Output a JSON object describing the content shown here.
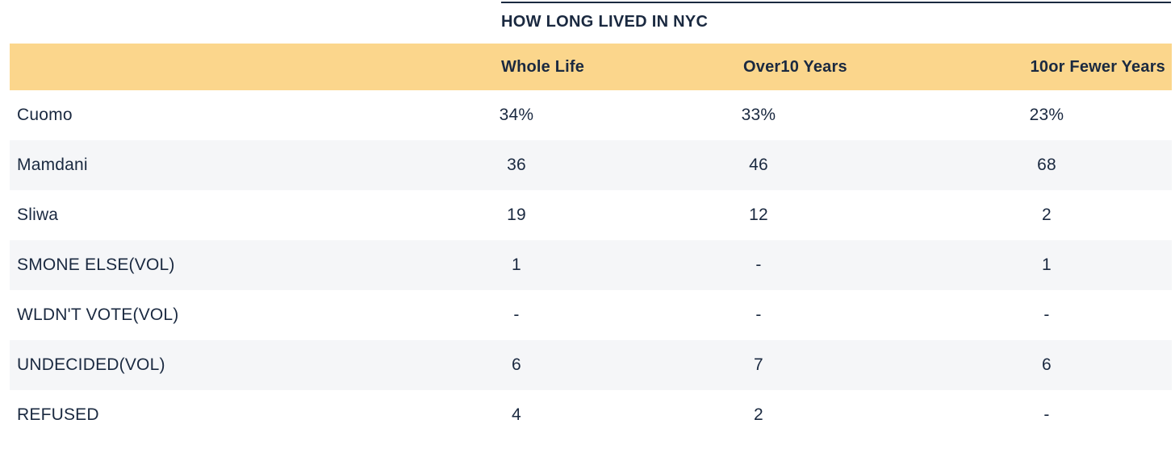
{
  "colors": {
    "text_navy": "#1a2940",
    "header_band_yellow": "#fbd68c",
    "row_stripe_gray": "#f5f6f8",
    "page_background": "#ffffff"
  },
  "chart_data": {
    "type": "table",
    "title": "HOW LONG LIVED IN NYC",
    "columns": [
      "Whole Life",
      "Over10 Years",
      "10or Fewer Years"
    ],
    "rows": [
      {
        "label": "Cuomo",
        "values": [
          "34%",
          "33%",
          "23%"
        ]
      },
      {
        "label": "Mamdani",
        "values": [
          "36",
          "46",
          "68"
        ]
      },
      {
        "label": "Sliwa",
        "values": [
          "19",
          "12",
          "2"
        ]
      },
      {
        "label": "SMONE ELSE(VOL)",
        "values": [
          "1",
          "-",
          "1"
        ]
      },
      {
        "label": "WLDN'T VOTE(VOL)",
        "values": [
          "-",
          "-",
          "-"
        ]
      },
      {
        "label": "UNDECIDED(VOL)",
        "values": [
          "6",
          "7",
          "6"
        ]
      },
      {
        "label": "REFUSED",
        "values": [
          "4",
          "2",
          "-"
        ]
      }
    ],
    "layout": {
      "row_striping": "alternating starting white",
      "value_alignment": "center",
      "first_two_headers_alignment": "left",
      "last_header_alignment": "right",
      "missing_value_glyph": "-"
    }
  }
}
